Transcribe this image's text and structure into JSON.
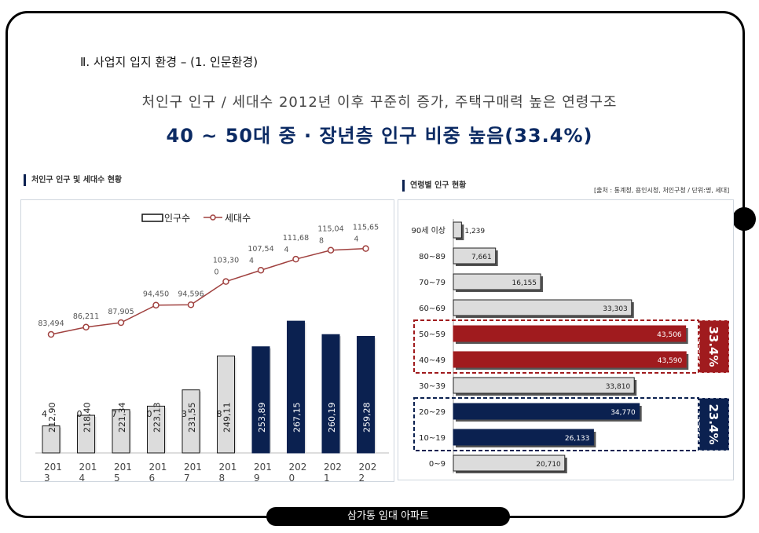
{
  "section_title": "Ⅱ. 사업지 입지 환경 – (1. 인문환경)",
  "subtitle": "처인구 인구 / 세대수 2012년 이후 꾸준히 증가, 주택구매력 높은 연령구조",
  "headline": "40 ~ 50대 중 · 장년층 인구 비중 높음(33.4%)",
  "left_panel": {
    "label": "처인구 인구 및 세대수 현황"
  },
  "right_panel": {
    "label": "연령별 인구 현황",
    "source": "[출처 : 통계청, 용인시청, 처인구청 / 단위:명, 세대]"
  },
  "footer": "삼가동 임대 아파트",
  "colors": {
    "navy": "#0b2150",
    "red": "#a01b1e",
    "gray_bar": "#dcdcdc",
    "line": "#a0413f"
  },
  "chart_data": [
    {
      "type": "bar",
      "categories": [
        "2013",
        "2014",
        "2015",
        "2016",
        "2017",
        "2018",
        "2019",
        "2020",
        "2021",
        "2022"
      ],
      "category_labels": [
        [
          "201",
          "3"
        ],
        [
          "201",
          "4"
        ],
        [
          "201",
          "5"
        ],
        [
          "201",
          "6"
        ],
        [
          "201",
          "7"
        ],
        [
          "201",
          "8"
        ],
        [
          "201",
          "9"
        ],
        [
          "202",
          "0"
        ],
        [
          "202",
          "1"
        ],
        [
          "202",
          "2"
        ]
      ],
      "legend": [
        "인구수",
        "세대수"
      ],
      "series": [
        {
          "name": "인구수",
          "type": "bar",
          "values": [
            212904,
            218400,
            221347,
            223130,
            231553,
            249118,
            253890,
            267150,
            260190,
            259280
          ],
          "labels": [
            [
              "212,90",
              "4"
            ],
            [
              "218,40",
              "0"
            ],
            [
              "221,34",
              "7"
            ],
            [
              "223,13",
              "0"
            ],
            [
              "231,55",
              "3"
            ],
            [
              "249,11",
              "8"
            ],
            [
              "253,89",
              ""
            ],
            [
              "267,15",
              ""
            ],
            [
              "260,19",
              ""
            ],
            [
              "259,28",
              ""
            ]
          ]
        },
        {
          "name": "세대수",
          "type": "line",
          "values": [
            83494,
            86211,
            87905,
            94450,
            94596,
            103300,
            107544,
            111684,
            115048,
            115654
          ],
          "labels": [
            [
              "83,494",
              ""
            ],
            [
              "86,211",
              ""
            ],
            [
              "87,905",
              ""
            ],
            [
              "94,450",
              ""
            ],
            [
              "94,596",
              ""
            ],
            [
              "103,30",
              "0"
            ],
            [
              "107,54",
              "4"
            ],
            [
              "111,68",
              "4"
            ],
            [
              "115,04",
              "8"
            ],
            [
              "115,65",
              "4"
            ]
          ]
        }
      ]
    },
    {
      "type": "bar",
      "orientation": "horizontal",
      "categories": [
        "90세 이상",
        "80~89",
        "70~79",
        "60~69",
        "50~59",
        "40~49",
        "30~39",
        "20~29",
        "10~19",
        "0~9"
      ],
      "values": [
        1239,
        7661,
        16155,
        33303,
        43506,
        43590,
        33810,
        34770,
        26133,
        20710
      ],
      "value_labels": [
        "1,239",
        "7,661",
        "16,155",
        "33,303",
        "43,506",
        "43,590",
        "33,810",
        "34,770",
        "26,133",
        "20,710"
      ],
      "highlight": [
        "gray",
        "gray",
        "gray",
        "gray",
        "red",
        "red",
        "gray",
        "navy",
        "navy",
        "gray"
      ],
      "groups": [
        {
          "rows": [
            "50~59",
            "40~49"
          ],
          "label": "33.4%",
          "color": "red"
        },
        {
          "rows": [
            "20~29",
            "10~19"
          ],
          "label": "23.4%",
          "color": "navy"
        }
      ]
    }
  ]
}
